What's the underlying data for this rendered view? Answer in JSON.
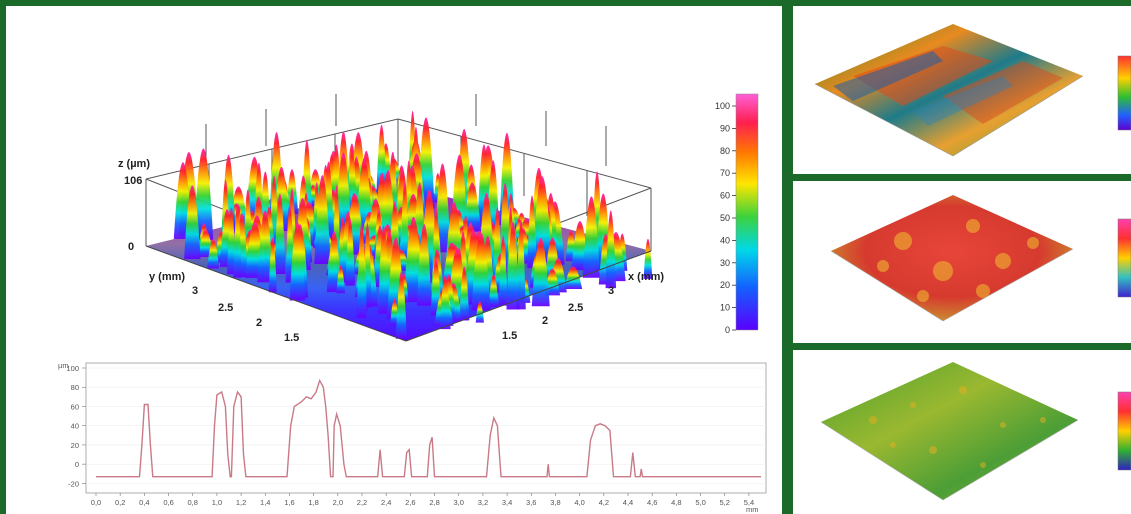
{
  "surface_3d": {
    "z_axis_label": "z (µm)",
    "z_max_label": "106",
    "z_min_label": "0",
    "y_axis_label": "y (mm)",
    "x_axis_label": "x (mm)",
    "y_ticks": [
      "3",
      "2.5",
      "2",
      "1.5"
    ],
    "x_ticks": [
      "3",
      "2.5",
      "2",
      "1.5"
    ],
    "colorbar_ticks": [
      "100",
      "90",
      "80",
      "70",
      "60",
      "50",
      "40",
      "30",
      "20",
      "10",
      "0"
    ]
  },
  "chart_data": {
    "type": "line",
    "xlabel": "mm",
    "ylabel": "µm",
    "xlim": [
      0.0,
      5.5
    ],
    "ylim": [
      -30,
      100
    ],
    "x_tick_labels": [
      "0,0",
      "0,2",
      "0,4",
      "0,6",
      "0,8",
      "1,0",
      "1,2",
      "1,4",
      "1,6",
      "1,8",
      "2,0",
      "2,2",
      "2,4",
      "2,6",
      "2,8",
      "3,0",
      "3,2",
      "3,4",
      "3,6",
      "3,8",
      "4,0",
      "4,2",
      "4,4",
      "4,6",
      "4,8",
      "5,0",
      "5,2",
      "5,4"
    ],
    "y_tick_labels": [
      "100",
      "80",
      "60",
      "40",
      "20",
      "0",
      "-20"
    ],
    "series": [
      {
        "color": "#c97a86",
        "points": [
          [
            0.0,
            -13
          ],
          [
            0.36,
            -13
          ],
          [
            0.38,
            20
          ],
          [
            0.4,
            62
          ],
          [
            0.43,
            62
          ],
          [
            0.45,
            20
          ],
          [
            0.47,
            -13
          ],
          [
            0.96,
            -13
          ],
          [
            0.98,
            40
          ],
          [
            1.0,
            72
          ],
          [
            1.04,
            75
          ],
          [
            1.07,
            60
          ],
          [
            1.09,
            10
          ],
          [
            1.11,
            -13
          ],
          [
            1.12,
            -13
          ],
          [
            1.14,
            60
          ],
          [
            1.17,
            75
          ],
          [
            1.2,
            70
          ],
          [
            1.22,
            10
          ],
          [
            1.24,
            -13
          ],
          [
            1.58,
            -13
          ],
          [
            1.61,
            40
          ],
          [
            1.64,
            60
          ],
          [
            1.7,
            65
          ],
          [
            1.74,
            70
          ],
          [
            1.78,
            68
          ],
          [
            1.82,
            75
          ],
          [
            1.85,
            87
          ],
          [
            1.88,
            80
          ],
          [
            1.9,
            60
          ],
          [
            1.92,
            30
          ],
          [
            1.94,
            -13
          ],
          [
            1.96,
            -13
          ],
          [
            1.97,
            40
          ],
          [
            1.99,
            52
          ],
          [
            2.02,
            40
          ],
          [
            2.05,
            0
          ],
          [
            2.07,
            -13
          ],
          [
            2.33,
            -13
          ],
          [
            2.35,
            15
          ],
          [
            2.37,
            -13
          ],
          [
            2.55,
            -13
          ],
          [
            2.57,
            12
          ],
          [
            2.59,
            15
          ],
          [
            2.61,
            -13
          ],
          [
            2.74,
            -13
          ],
          [
            2.76,
            20
          ],
          [
            2.78,
            28
          ],
          [
            2.8,
            -13
          ],
          [
            3.23,
            -13
          ],
          [
            3.26,
            30
          ],
          [
            3.29,
            48
          ],
          [
            3.32,
            40
          ],
          [
            3.35,
            -13
          ],
          [
            3.73,
            -13
          ],
          [
            3.74,
            0
          ],
          [
            3.75,
            -13
          ],
          [
            4.06,
            -13
          ],
          [
            4.09,
            25
          ],
          [
            4.13,
            40
          ],
          [
            4.17,
            42
          ],
          [
            4.21,
            40
          ],
          [
            4.25,
            35
          ],
          [
            4.28,
            -13
          ],
          [
            4.42,
            -13
          ],
          [
            4.44,
            12
          ],
          [
            4.46,
            -13
          ],
          [
            4.5,
            -13
          ],
          [
            4.51,
            -5
          ],
          [
            4.52,
            -13
          ],
          [
            5.5,
            -13
          ]
        ]
      }
    ]
  },
  "colors": {
    "frame_green": "#1c6a2a",
    "profile_line": "#c97a86"
  }
}
